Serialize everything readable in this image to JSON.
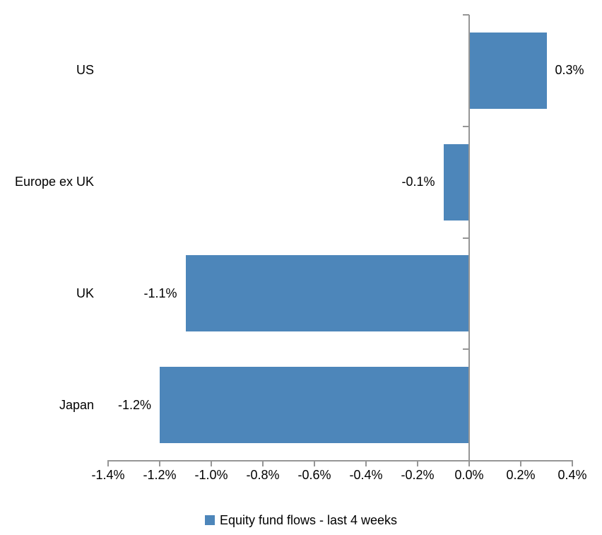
{
  "chart_data": {
    "type": "bar",
    "orientation": "horizontal",
    "title": "",
    "xlabel": "",
    "ylabel": "",
    "categories": [
      "US",
      "Europe ex UK",
      "UK",
      "Japan"
    ],
    "values": [
      0.3,
      -0.1,
      -1.1,
      -1.2
    ],
    "data_labels": [
      "0.3%",
      "-0.1%",
      "-1.1%",
      "-1.2%"
    ],
    "series_name": "Equity fund flows - last 4 weeks",
    "xlim": [
      -1.4,
      0.4
    ],
    "x_tick_values": [
      -1.4,
      -1.2,
      -1.0,
      -0.8,
      -0.6,
      -0.4,
      -0.2,
      0.0,
      0.2,
      0.4
    ],
    "x_ticks": [
      "-1.4%",
      "-1.2%",
      "-1.0%",
      "-0.8%",
      "-0.6%",
      "-0.4%",
      "-0.2%",
      "0.0%",
      "0.2%",
      "0.4%"
    ],
    "grid": false,
    "legend_position": "bottom",
    "colors": {
      "bar": "#4d86ba",
      "axis": "#969696",
      "text": "#000000"
    }
  }
}
